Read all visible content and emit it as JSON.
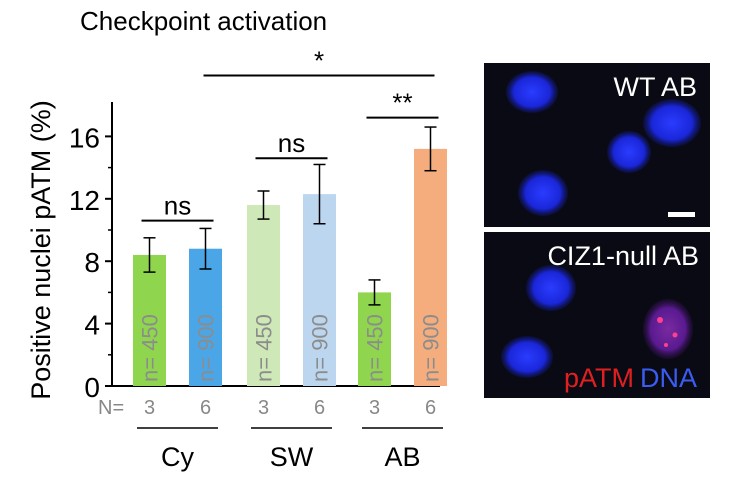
{
  "chart_data": {
    "type": "bar",
    "title": "Checkpoint activation",
    "ylabel": "Positive nuclei pATM (%)",
    "xlabel": "",
    "ylim": [
      0,
      18
    ],
    "yticks": [
      0,
      4,
      8,
      12,
      16
    ],
    "n_prefix": "N=",
    "bars": [
      {
        "value": 8.4,
        "error": 1.1,
        "color": "#8fd64e",
        "n_label": "n= 450",
        "N": "3"
      },
      {
        "value": 8.8,
        "error": 1.3,
        "color": "#4aa6e6",
        "n_label": "n= 900",
        "N": "6"
      },
      {
        "value": 11.6,
        "error": 0.9,
        "color": "#cfe8b7",
        "n_label": "n= 450",
        "N": "3"
      },
      {
        "value": 12.3,
        "error": 1.9,
        "color": "#bcd6ef",
        "n_label": "n= 900",
        "N": "6"
      },
      {
        "value": 6.0,
        "error": 0.8,
        "color": "#8fd64e",
        "n_label": "n= 450",
        "N": "3"
      },
      {
        "value": 15.2,
        "error": 1.4,
        "color": "#f5ad7d",
        "n_label": "n= 900",
        "N": "6"
      }
    ],
    "groups": [
      {
        "label": "Cy",
        "bars": [
          0,
          1
        ]
      },
      {
        "label": "SW",
        "bars": [
          2,
          3
        ]
      },
      {
        "label": "AB",
        "bars": [
          4,
          5
        ]
      }
    ],
    "significance": [
      {
        "from": 0,
        "to": 1,
        "label": "ns",
        "at": 10.6
      },
      {
        "from": 2,
        "to": 3,
        "label": "ns",
        "at": 14.6
      },
      {
        "from": 4,
        "to": 5,
        "label": "**",
        "at": 17.2
      },
      {
        "from": 1,
        "to": 5,
        "label": "*",
        "at": 19.9
      }
    ]
  },
  "micrographs": [
    {
      "title": "WT AB",
      "legend": [],
      "scale_bar": true
    },
    {
      "title": "CIZ1-null AB",
      "legend": [
        {
          "text": "pATM",
          "color": "#e02020"
        },
        {
          "text": "DNA",
          "color": "#3a5cf0"
        }
      ],
      "scale_bar": false
    }
  ]
}
